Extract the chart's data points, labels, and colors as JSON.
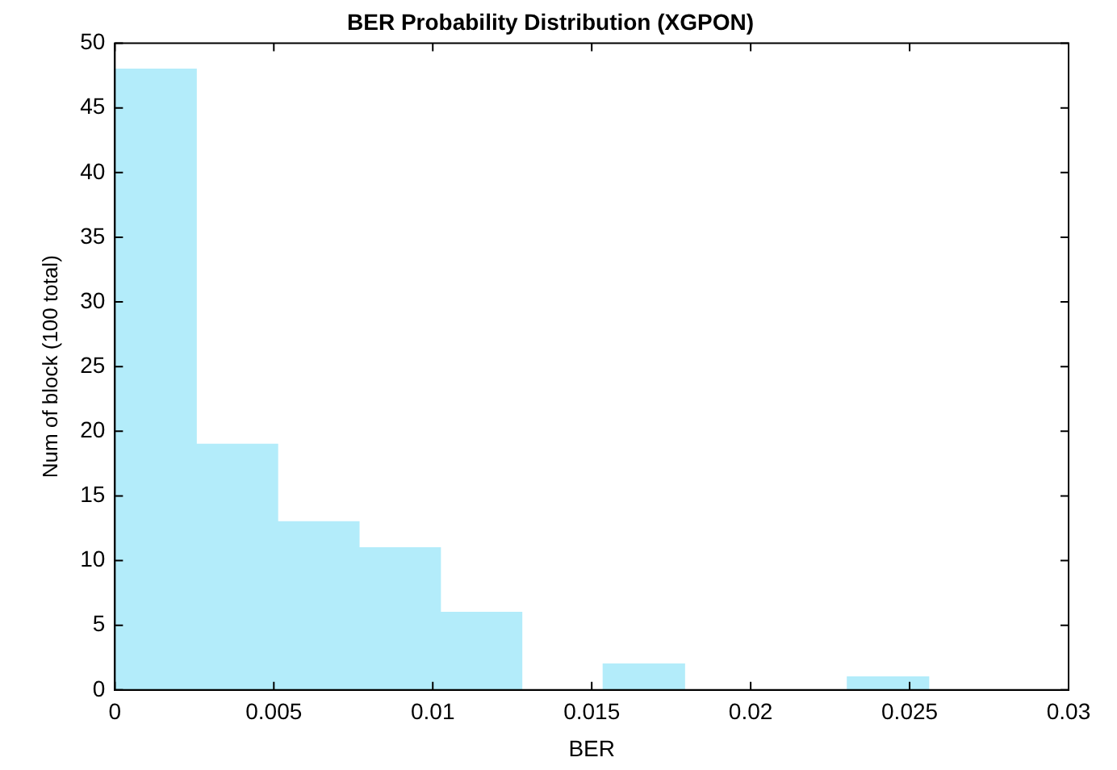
{
  "chart_data": {
    "type": "histogram",
    "title": "BER Probability Distribution (XGPON)",
    "xlabel": "BER",
    "ylabel": "Num of block (100 total)",
    "bins": [
      0,
      0.00256,
      0.00512,
      0.00768,
      0.01024,
      0.0128,
      0.01536,
      0.01792,
      0.02048,
      0.02304,
      0.0256
    ],
    "values": [
      48,
      19,
      13,
      11,
      6,
      0,
      2,
      0,
      0,
      1
    ],
    "color": "#b3ecfa",
    "xlim": [
      0,
      0.03
    ],
    "xticks": [
      0,
      0.005,
      0.01,
      0.015,
      0.02,
      0.025,
      0.03
    ],
    "ylim": [
      0,
      50
    ],
    "yticks": [
      0,
      5,
      10,
      15,
      20,
      25,
      30,
      35,
      40,
      45,
      50
    ],
    "grid": false,
    "legend": false
  }
}
